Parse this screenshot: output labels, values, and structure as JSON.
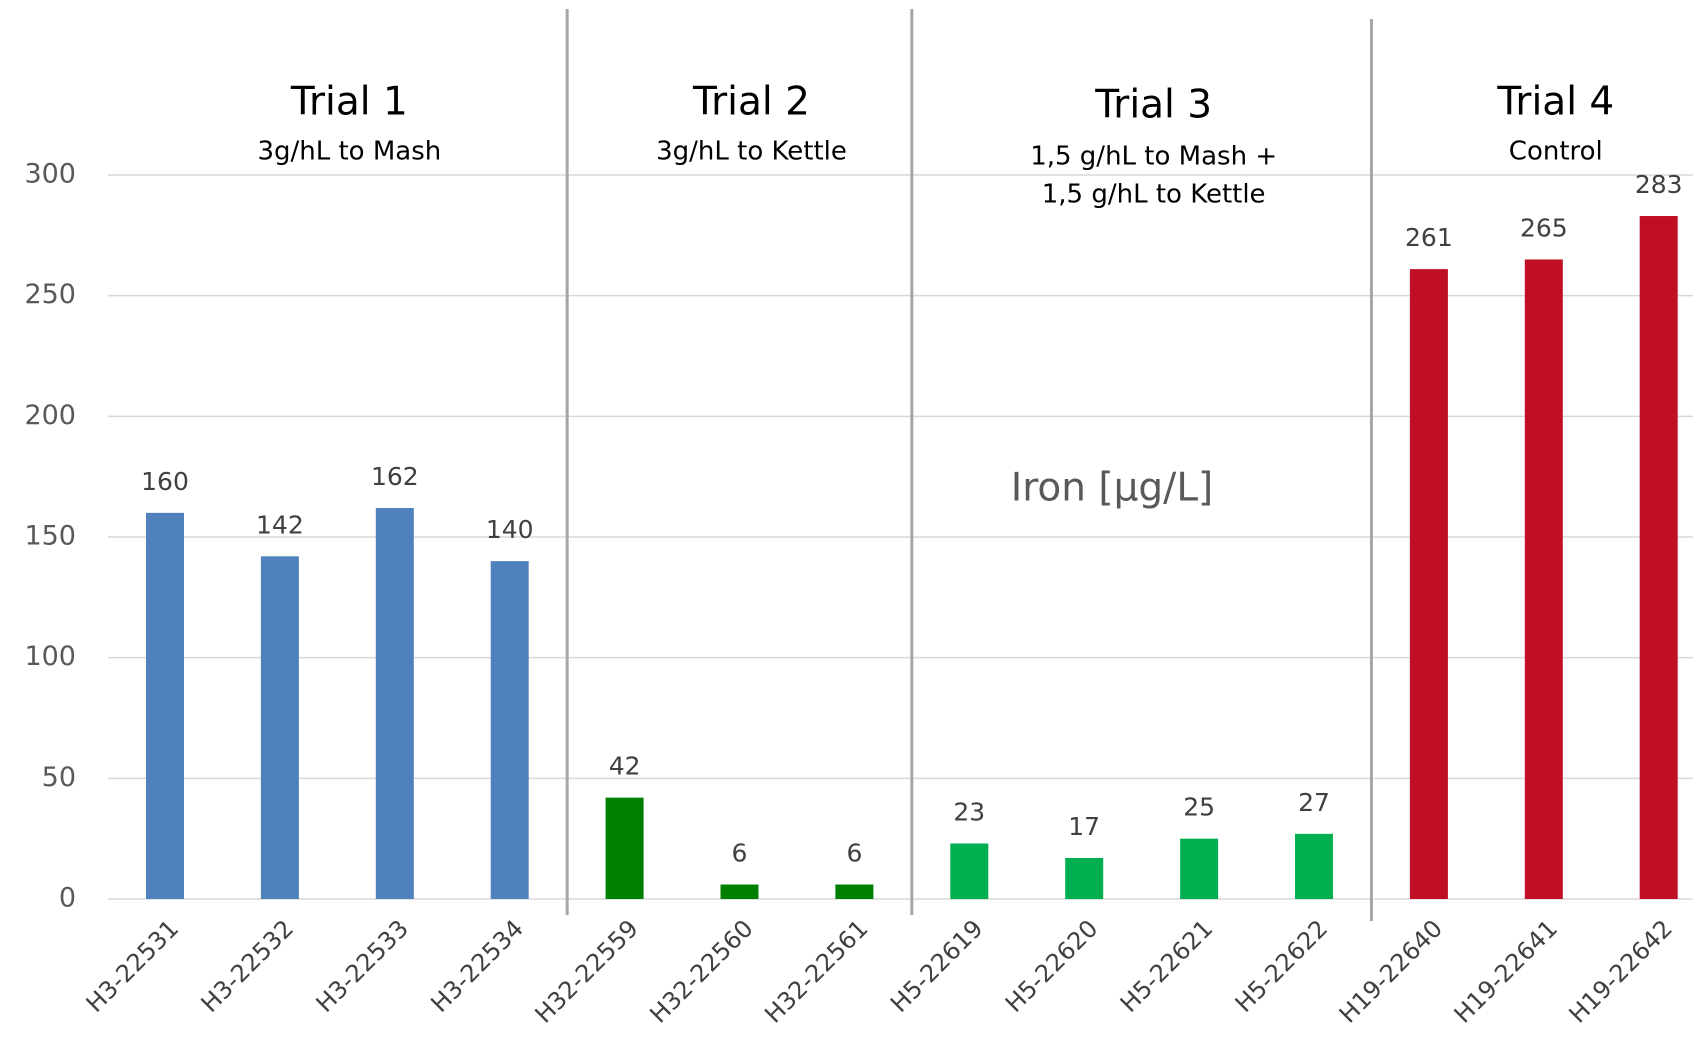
{
  "chart_data": {
    "type": "bar",
    "title": "Iron [µg/L]",
    "ylim": [
      0,
      300
    ],
    "yticks": [
      0,
      50,
      100,
      150,
      200,
      250,
      300
    ],
    "grid": true,
    "groups": [
      {
        "title": "Trial 1",
        "subtitle": [
          "3g/hL to Mash"
        ],
        "color": "#4f81bd",
        "categories": [
          "H3-22531",
          "H3-22532",
          "H3-22533",
          "H3-22534"
        ],
        "values": [
          160,
          142,
          162,
          140
        ]
      },
      {
        "title": "Trial 2",
        "subtitle": [
          "3g/hL to Kettle"
        ],
        "color": "#008000",
        "categories": [
          "H32-22559",
          "H32-22560",
          "H32-22561"
        ],
        "values": [
          42,
          6,
          6
        ]
      },
      {
        "title": "Trial 3",
        "subtitle": [
          "1,5 g/hL to Mash +",
          "1,5 g/hL to Kettle"
        ],
        "color": "#00b050",
        "categories": [
          "H5-22619",
          "H5-22620",
          "H5-22621",
          "H5-22622"
        ],
        "values": [
          23,
          17,
          25,
          27
        ]
      },
      {
        "title": "Trial 4",
        "subtitle": [
          "Control"
        ],
        "color": "#c00f23",
        "categories": [
          "H19-22640",
          "H19-22641",
          "H19-22642"
        ],
        "values": [
          261,
          265,
          283
        ]
      }
    ]
  }
}
